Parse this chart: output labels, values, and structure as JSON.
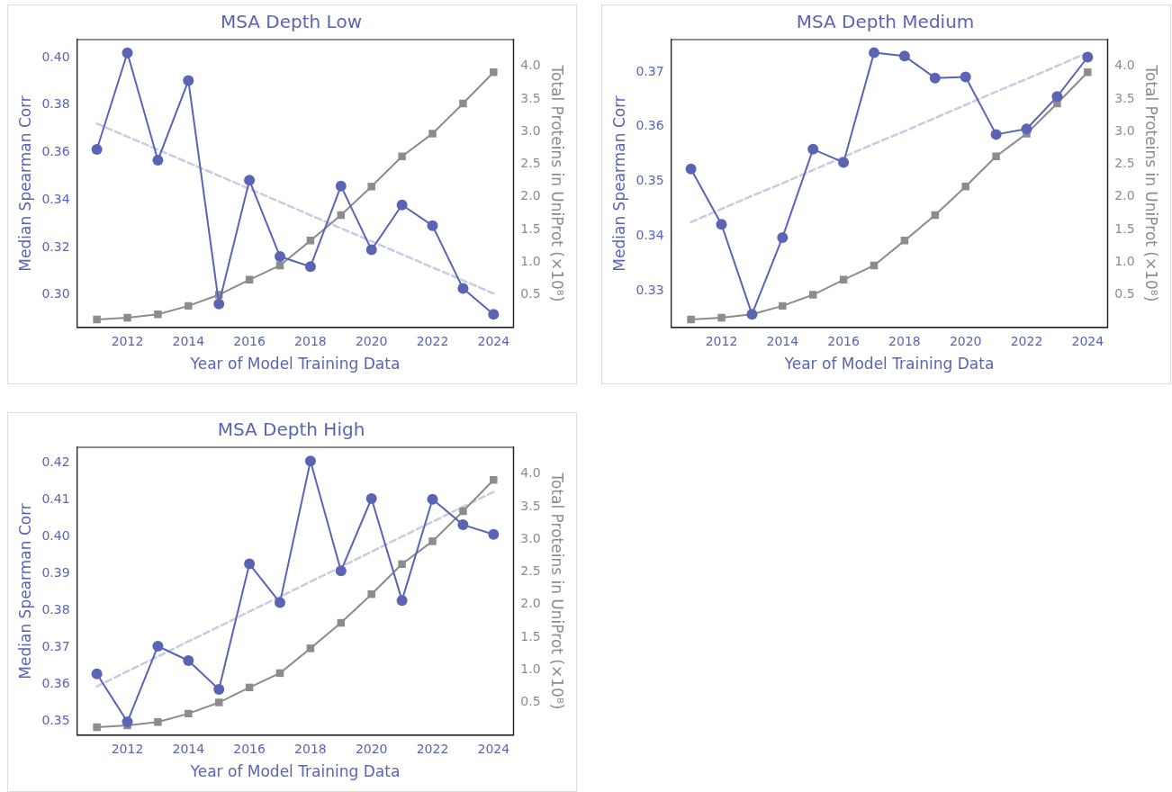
{
  "chart_data": [
    {
      "type": "line",
      "title": "MSA Depth Low",
      "xlabel": "Year of Model Training Data",
      "ylabel": "Median Spearman Corr",
      "y2label": "Total Proteins in UniProt (×10⁸)",
      "x": [
        2011,
        2012,
        2013,
        2014,
        2015,
        2016,
        2017,
        2018,
        2019,
        2020,
        2021,
        2022,
        2023,
        2024
      ],
      "xlim": [
        2010.35,
        2024.65
      ],
      "xticks": [
        2012,
        2014,
        2016,
        2018,
        2020,
        2022,
        2024
      ],
      "ylim": [
        0.2863,
        0.4076
      ],
      "yticks": [
        {
          "value": 0.3,
          "label": "0.30"
        },
        {
          "value": 0.32,
          "label": "0.32"
        },
        {
          "value": 0.34,
          "label": "0.34"
        },
        {
          "value": 0.36,
          "label": "0.36"
        },
        {
          "value": 0.38,
          "label": "0.38"
        },
        {
          "value": 0.4,
          "label": "0.40"
        }
      ],
      "y2lim": [
        0,
        4.41
      ],
      "y2ticks": [
        0.5,
        {
          "value": 1,
          "label": "1.0"
        },
        1.5,
        {
          "value": 2,
          "label": "2.0"
        },
        2.5,
        {
          "value": 3,
          "label": "3.0"
        },
        3.5,
        {
          "value": 4,
          "label": "4.0"
        }
      ],
      "series": [
        {
          "color": "#c8cae6",
          "line_style": "dashed",
          "marker": "none",
          "values": [
            0.3722,
            0.3667,
            0.3612,
            0.3557,
            0.3502,
            0.3447,
            0.3392,
            0.3336,
            0.3281,
            0.3226,
            0.3171,
            0.3116,
            0.3061,
            0.3006
          ]
        },
        {
          "color": "#8c8c8c",
          "axis": "y2",
          "marker": "square",
          "values": [
            0.12,
            0.15,
            0.2,
            0.33,
            0.5,
            0.73,
            0.95,
            1.33,
            1.72,
            2.16,
            2.62,
            2.97,
            3.43,
            3.91
          ]
        },
        {
          "color": "#5a64b4",
          "marker": "circle",
          "values": [
            0.3613,
            0.402,
            0.3568,
            0.3903,
            0.2962,
            0.3483,
            0.3162,
            0.3119,
            0.3459,
            0.319,
            0.3379,
            0.3292,
            0.3027,
            0.2918
          ]
        }
      ]
    },
    {
      "type": "line",
      "title": "MSA Depth Medium",
      "xlabel": "Year of Model Training Data",
      "ylabel": "Median Spearman Corr",
      "y2label": "Total Proteins in UniProt (×10⁸)",
      "x": [
        2011,
        2012,
        2013,
        2014,
        2015,
        2016,
        2017,
        2018,
        2019,
        2020,
        2021,
        2022,
        2023,
        2024
      ],
      "xlim": [
        2010.35,
        2024.65
      ],
      "xticks": [
        2012,
        2014,
        2016,
        2018,
        2020,
        2022,
        2024
      ],
      "ylim": [
        0.3234,
        0.3759
      ],
      "yticks": [
        {
          "value": 0.33,
          "label": "0.33"
        },
        {
          "value": 0.34,
          "label": "0.34"
        },
        {
          "value": 0.35,
          "label": "0.35"
        },
        {
          "value": 0.36,
          "label": "0.36"
        },
        {
          "value": 0.37,
          "label": "0.37"
        }
      ],
      "y2lim": [
        0,
        4.41
      ],
      "y2ticks": [
        0.5,
        {
          "value": 1,
          "label": "1.0"
        },
        1.5,
        {
          "value": 2,
          "label": "2.0"
        },
        2.5,
        {
          "value": 3,
          "label": "3.0"
        },
        3.5,
        {
          "value": 4,
          "label": "4.0"
        }
      ],
      "series": [
        {
          "color": "#c8cae6",
          "line_style": "dashed",
          "marker": "none",
          "values": [
            0.3426,
            0.345,
            0.3474,
            0.3497,
            0.3521,
            0.3545,
            0.3569,
            0.3592,
            0.3616,
            0.364,
            0.3664,
            0.3687,
            0.3711,
            0.3735
          ]
        },
        {
          "color": "#8c8c8c",
          "axis": "y2",
          "marker": "square",
          "values": [
            0.12,
            0.15,
            0.2,
            0.33,
            0.5,
            0.73,
            0.95,
            1.33,
            1.72,
            2.16,
            2.62,
            2.97,
            3.43,
            3.91
          ]
        },
        {
          "color": "#5a64b4",
          "marker": "circle",
          "values": [
            0.3523,
            0.3422,
            0.3258,
            0.3398,
            0.3559,
            0.3535,
            0.3735,
            0.3729,
            0.3689,
            0.3691,
            0.3586,
            0.3596,
            0.3655,
            0.3727
          ]
        }
      ]
    },
    {
      "type": "line",
      "title": "MSA Depth High",
      "xlabel": "Year of Model Training Data",
      "ylabel": "Median Spearman Corr",
      "y2label": "Total Proteins in UniProt (×10⁸)",
      "x": [
        2011,
        2012,
        2013,
        2014,
        2015,
        2016,
        2017,
        2018,
        2019,
        2020,
        2021,
        2022,
        2023,
        2024
      ],
      "xlim": [
        2010.35,
        2024.65
      ],
      "xticks": [
        2012,
        2014,
        2016,
        2018,
        2020,
        2022,
        2024
      ],
      "ylim": [
        0.3462,
        0.4242
      ],
      "yticks": [
        {
          "value": 0.35,
          "label": "0.35"
        },
        {
          "value": 0.36,
          "label": "0.36"
        },
        {
          "value": 0.37,
          "label": "0.37"
        },
        {
          "value": 0.38,
          "label": "0.38"
        },
        {
          "value": 0.39,
          "label": "0.39"
        },
        {
          "value": 0.4,
          "label": "0.40"
        },
        {
          "value": 0.41,
          "label": "0.41"
        },
        {
          "value": 0.42,
          "label": "0.42"
        }
      ],
      "y2lim": [
        0,
        4.41
      ],
      "y2ticks": [
        0.5,
        {
          "value": 1,
          "label": "1.0"
        },
        1.5,
        {
          "value": 2,
          "label": "2.0"
        },
        2.5,
        {
          "value": 3,
          "label": "3.0"
        },
        3.5,
        {
          "value": 4,
          "label": "4.0"
        }
      ],
      "series": [
        {
          "color": "#c8cae6",
          "line_style": "dashed",
          "marker": "none",
          "values": [
            0.3594,
            0.3635,
            0.3675,
            0.3716,
            0.3756,
            0.3797,
            0.3837,
            0.3878,
            0.3918,
            0.3959,
            0.4,
            0.404,
            0.4081,
            0.4121
          ]
        },
        {
          "color": "#8c8c8c",
          "axis": "y2",
          "marker": "square",
          "values": [
            0.12,
            0.15,
            0.2,
            0.33,
            0.5,
            0.73,
            0.95,
            1.33,
            1.72,
            2.16,
            2.62,
            2.97,
            3.43,
            3.91
          ]
        },
        {
          "color": "#5a64b4",
          "marker": "circle",
          "values": [
            0.3628,
            0.3498,
            0.3703,
            0.3664,
            0.3586,
            0.3926,
            0.3821,
            0.4205,
            0.3907,
            0.4103,
            0.3827,
            0.4101,
            0.4032,
            0.4006
          ]
        }
      ]
    }
  ]
}
